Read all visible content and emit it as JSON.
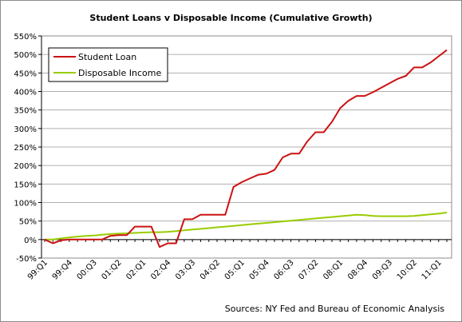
{
  "chart_data": {
    "type": "line",
    "title": "Student Loans v Disposable Income (Cumulative Growth)",
    "source": "Sources: NY Fed and Bureau of Economic Analysis",
    "xlabel": "",
    "ylabel": "",
    "ylim": [
      -50,
      550
    ],
    "yticks": [
      -50,
      0,
      50,
      100,
      150,
      200,
      250,
      300,
      350,
      400,
      450,
      500,
      550
    ],
    "ytick_labels": [
      "-50%",
      "0%",
      "50%",
      "100%",
      "150%",
      "200%",
      "250%",
      "300%",
      "350%",
      "400%",
      "450%",
      "500%",
      "550%"
    ],
    "grid": "horizontal",
    "legend": "top-left",
    "x_tick_labels": [
      {
        "index": 0,
        "label": "99:Q1"
      },
      {
        "index": 3,
        "label": "99:Q4"
      },
      {
        "index": 6,
        "label": "00:Q3"
      },
      {
        "index": 9,
        "label": "01:Q2"
      },
      {
        "index": 12,
        "label": "02:Q1"
      },
      {
        "index": 15,
        "label": "02:Q4"
      },
      {
        "index": 18,
        "label": "03:Q3"
      },
      {
        "index": 21,
        "label": "04:Q2"
      },
      {
        "index": 24,
        "label": "05:Q1"
      },
      {
        "index": 27,
        "label": "05:Q4"
      },
      {
        "index": 30,
        "label": "06:Q3"
      },
      {
        "index": 33,
        "label": "07:Q2"
      },
      {
        "index": 36,
        "label": "08:Q1"
      },
      {
        "index": 39,
        "label": "08:Q4"
      },
      {
        "index": 42,
        "label": "09:Q3"
      },
      {
        "index": 45,
        "label": "10:Q2"
      },
      {
        "index": 48,
        "label": "11:Q1"
      }
    ],
    "n_points": 50,
    "series": [
      {
        "name": "Student Loan",
        "color": "#cc1111",
        "values": [
          0,
          -10,
          -2,
          0,
          0,
          0,
          0,
          0,
          10,
          12,
          12,
          35,
          35,
          35,
          -20,
          -10,
          -10,
          55,
          55,
          67,
          67,
          67,
          67,
          142,
          155,
          165,
          175,
          178,
          188,
          222,
          232,
          232,
          265,
          290,
          290,
          318,
          355,
          375,
          388,
          388,
          398,
          410,
          422,
          434,
          442,
          465,
          465,
          478,
          495,
          512
        ]
      },
      {
        "name": "Disposable Income",
        "color": "#99cc00",
        "values": [
          0,
          0,
          3,
          6,
          8,
          10,
          11,
          13,
          15,
          16,
          17,
          18,
          19,
          20,
          20,
          21,
          23,
          25,
          27,
          29,
          31,
          33,
          35,
          37,
          39,
          41,
          43,
          45,
          47,
          49,
          51,
          53,
          55,
          57,
          59,
          61,
          63,
          65,
          67,
          66,
          64,
          63,
          63,
          63,
          63,
          64,
          66,
          68,
          70,
          73
        ]
      }
    ]
  }
}
